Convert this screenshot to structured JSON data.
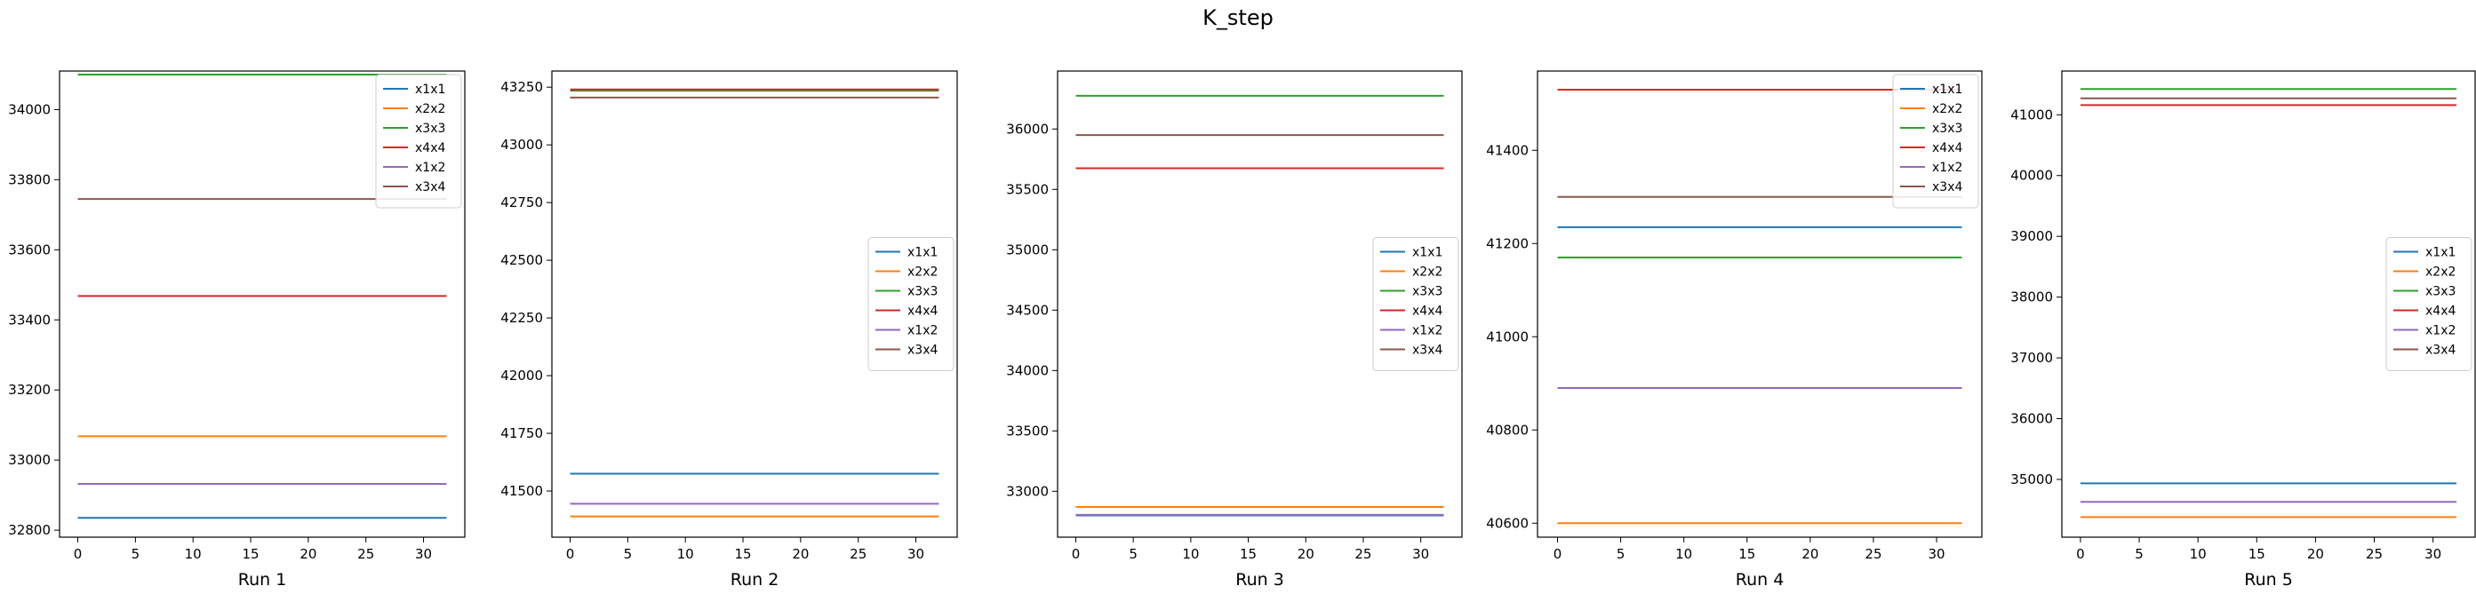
{
  "figure": {
    "suptitle": "K_step"
  },
  "colors": [
    "#1f77b4",
    "#ff7f0e",
    "#2ca02c",
    "#d62728",
    "#9467bd",
    "#8c564b"
  ],
  "chart_data": [
    {
      "type": "line",
      "xlabel": "Run 1",
      "xlim": [
        0,
        32
      ],
      "xticks": [
        0,
        5,
        10,
        15,
        20,
        25,
        30
      ],
      "ylim": [
        32780,
        34110
      ],
      "yticks": [
        32800,
        33000,
        33200,
        33400,
        33600,
        33800,
        34000
      ],
      "legend": "top-right",
      "series": [
        {
          "name": "x1x1",
          "values": [
            32835,
            32835
          ]
        },
        {
          "name": "x2x2",
          "values": [
            33068,
            33068
          ]
        },
        {
          "name": "x3x3",
          "values": [
            34100,
            34100
          ]
        },
        {
          "name": "x4x4",
          "values": [
            33468,
            33468
          ]
        },
        {
          "name": "x1x2",
          "values": [
            32932,
            32932
          ]
        },
        {
          "name": "x3x4",
          "values": [
            33745,
            33745
          ]
        }
      ]
    },
    {
      "type": "line",
      "xlabel": "Run 2",
      "xlim": [
        0,
        32
      ],
      "xticks": [
        0,
        5,
        10,
        15,
        20,
        25,
        30
      ],
      "ylim": [
        41300,
        43320
      ],
      "yticks": [
        41500,
        41750,
        42000,
        42250,
        42500,
        42750,
        43000,
        43250
      ],
      "legend": "center-right",
      "series": [
        {
          "name": "x1x1",
          "values": [
            41575,
            41575
          ]
        },
        {
          "name": "x2x2",
          "values": [
            41390,
            41390
          ]
        },
        {
          "name": "x3x3",
          "values": [
            43235,
            43235
          ]
        },
        {
          "name": "x4x4",
          "values": [
            43240,
            43240
          ]
        },
        {
          "name": "x1x2",
          "values": [
            41445,
            41445
          ]
        },
        {
          "name": "x3x4",
          "values": [
            43205,
            43205
          ]
        }
      ]
    },
    {
      "type": "line",
      "xlabel": "Run 3",
      "xlim": [
        0,
        32
      ],
      "xticks": [
        0,
        5,
        10,
        15,
        20,
        25,
        30
      ],
      "ylim": [
        32620,
        36480
      ],
      "yticks": [
        33000,
        33500,
        34000,
        34500,
        35000,
        35500,
        36000
      ],
      "legend": "center-right",
      "series": [
        {
          "name": "x1x1",
          "values": [
            32800,
            32800
          ]
        },
        {
          "name": "x2x2",
          "values": [
            32870,
            32870
          ]
        },
        {
          "name": "x3x3",
          "values": [
            36275,
            36275
          ]
        },
        {
          "name": "x4x4",
          "values": [
            35675,
            35675
          ]
        },
        {
          "name": "x1x2",
          "values": [
            32805,
            32805
          ]
        },
        {
          "name": "x3x4",
          "values": [
            35950,
            35950
          ]
        }
      ]
    },
    {
      "type": "line",
      "xlabel": "Run 4",
      "xlim": [
        0,
        32
      ],
      "xticks": [
        0,
        5,
        10,
        15,
        20,
        25,
        30
      ],
      "ylim": [
        40570,
        41570
      ],
      "yticks": [
        40600,
        40800,
        41000,
        41200,
        41400
      ],
      "legend": "top-right",
      "series": [
        {
          "name": "x1x1",
          "values": [
            41235,
            41235
          ]
        },
        {
          "name": "x2x2",
          "values": [
            40600,
            40600
          ]
        },
        {
          "name": "x3x3",
          "values": [
            41170,
            41170
          ]
        },
        {
          "name": "x4x4",
          "values": [
            41530,
            41530
          ]
        },
        {
          "name": "x1x2",
          "values": [
            40890,
            40890
          ]
        },
        {
          "name": "x3x4",
          "values": [
            41300,
            41300
          ]
        }
      ]
    },
    {
      "type": "line",
      "xlabel": "Run 5",
      "xlim": [
        0,
        32
      ],
      "xticks": [
        0,
        5,
        10,
        15,
        20,
        25,
        30
      ],
      "ylim": [
        34050,
        41720
      ],
      "yticks": [
        35000,
        36000,
        37000,
        38000,
        39000,
        40000,
        41000
      ],
      "legend": "center-right",
      "series": [
        {
          "name": "x1x1",
          "values": [
            34935,
            34935
          ]
        },
        {
          "name": "x2x2",
          "values": [
            34380,
            34380
          ]
        },
        {
          "name": "x3x3",
          "values": [
            41425,
            41425
          ]
        },
        {
          "name": "x4x4",
          "values": [
            41160,
            41160
          ]
        },
        {
          "name": "x1x2",
          "values": [
            34630,
            34630
          ]
        },
        {
          "name": "x3x4",
          "values": [
            41270,
            41270
          ]
        }
      ]
    }
  ]
}
